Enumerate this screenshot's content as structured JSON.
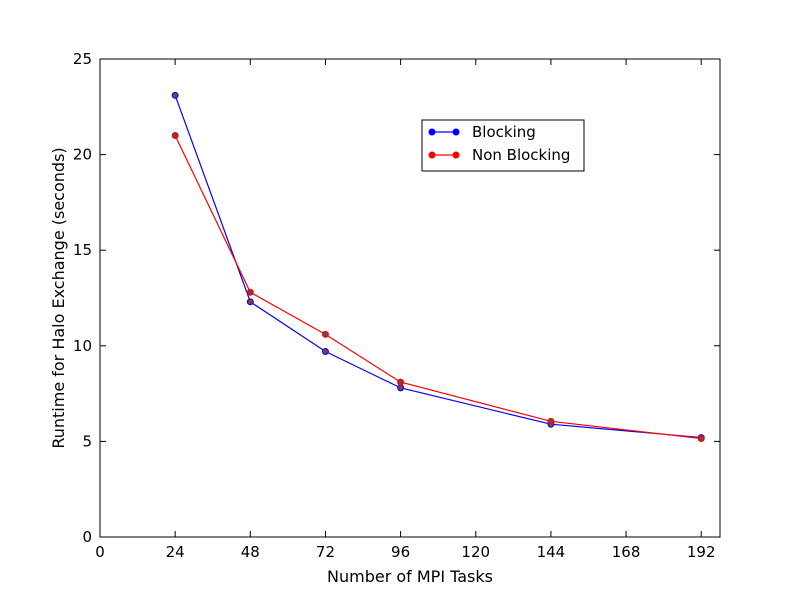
{
  "chart_data": {
    "type": "line",
    "title": "",
    "xlabel": "Number of MPI Tasks",
    "ylabel": "Runtime for Halo Exchange (seconds)",
    "xlim": [
      0,
      198
    ],
    "ylim": [
      0,
      25
    ],
    "xticks": [
      0,
      24,
      48,
      72,
      96,
      120,
      144,
      168,
      192
    ],
    "yticks": [
      0,
      5,
      10,
      15,
      20,
      25
    ],
    "grid": false,
    "legend_position": "upper-right",
    "series": [
      {
        "name": "Blocking",
        "color": "#0000ff",
        "x": [
          24,
          48,
          72,
          96,
          144,
          192
        ],
        "y": [
          23.1,
          12.3,
          9.7,
          7.8,
          5.9,
          5.2
        ]
      },
      {
        "name": "Non Blocking",
        "color": "#ff0000",
        "x": [
          24,
          48,
          72,
          96,
          144,
          192
        ],
        "y": [
          21.0,
          12.8,
          10.6,
          8.1,
          6.05,
          5.15
        ]
      }
    ],
    "marker_color": "#7f3f3f"
  }
}
